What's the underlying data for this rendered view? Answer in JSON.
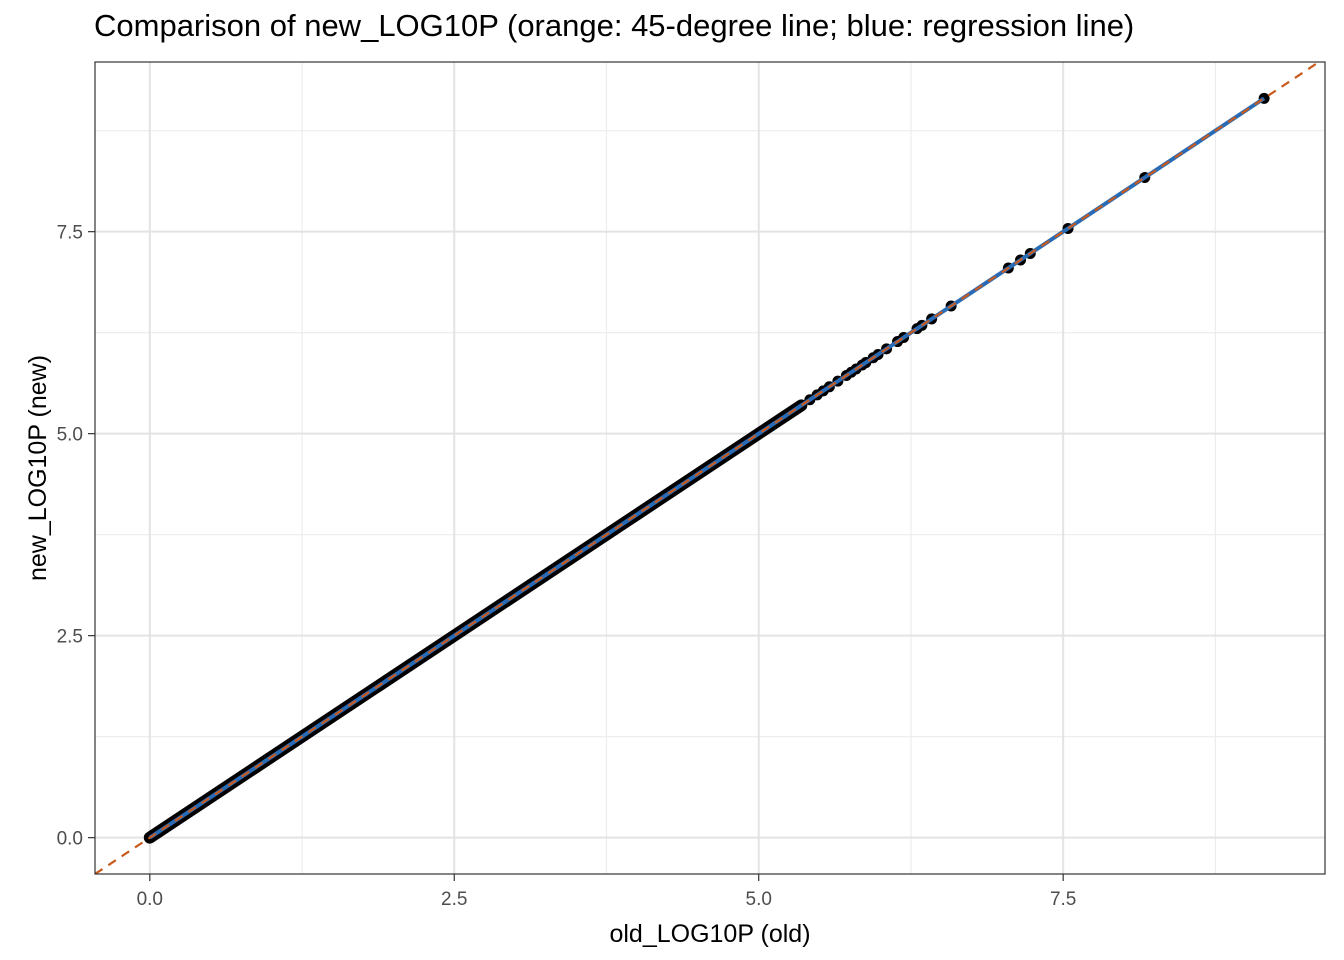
{
  "chart_data": {
    "type": "scatter",
    "title": "Comparison of new_LOG10P (orange: 45-degree line; blue: regression line)",
    "xlabel": "old_LOG10P (old)",
    "ylabel": "new_LOG10P (new)",
    "xlim": [
      -0.45,
      9.65
    ],
    "ylim": [
      -0.45,
      9.6
    ],
    "x_ticks": [
      0,
      2.5,
      5,
      7.5
    ],
    "y_ticks": [
      0,
      2.5,
      5,
      7.5
    ],
    "x_tick_labels": [
      "0.0",
      "2.5",
      "5.0",
      "7.5"
    ],
    "y_tick_labels": [
      "0.0",
      "2.5",
      "5.0",
      "7.5"
    ],
    "grid": true,
    "dense_range": [
      0,
      5.35
    ],
    "points": [
      [
        5.42,
        5.42
      ],
      [
        5.48,
        5.48
      ],
      [
        5.53,
        5.53
      ],
      [
        5.58,
        5.58
      ],
      [
        5.65,
        5.65
      ],
      [
        5.72,
        5.72
      ],
      [
        5.76,
        5.76
      ],
      [
        5.8,
        5.8
      ],
      [
        5.85,
        5.85
      ],
      [
        5.88,
        5.88
      ],
      [
        5.94,
        5.94
      ],
      [
        5.98,
        5.98
      ],
      [
        6.05,
        6.05
      ],
      [
        6.14,
        6.14
      ],
      [
        6.19,
        6.19
      ],
      [
        6.3,
        6.3
      ],
      [
        6.34,
        6.34
      ],
      [
        6.42,
        6.42
      ],
      [
        6.58,
        6.58
      ],
      [
        7.05,
        7.05
      ],
      [
        7.15,
        7.15
      ],
      [
        7.23,
        7.23
      ],
      [
        7.54,
        7.54
      ],
      [
        8.17,
        8.17
      ],
      [
        9.15,
        9.15
      ]
    ],
    "lines": {
      "identity": {
        "slope": 1,
        "intercept": 0,
        "color": "#c85a1e",
        "style": "dashed"
      },
      "regression": {
        "slope": 1,
        "intercept": 0,
        "color": "#2a6bb5",
        "style": "solid"
      }
    },
    "point_color": "#000000"
  }
}
